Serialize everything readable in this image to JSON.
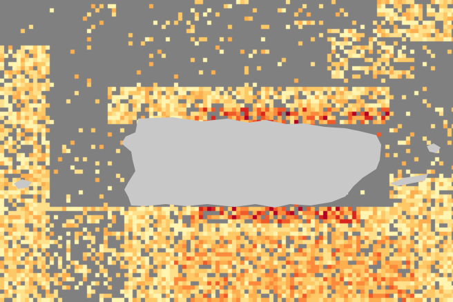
{
  "map": {
    "colors": {
      "no_data": "#808080",
      "land": "#c8c8c8",
      "scale": [
        "#fff4b0",
        "#ffe08a",
        "#fec866",
        "#fdae4f",
        "#fb8a3c",
        "#f05a28",
        "#d7261e",
        "#b10026",
        "#800026"
      ]
    },
    "land_features": [
      "puerto-rico",
      "vieques",
      "culebra",
      "mona-island"
    ]
  }
}
